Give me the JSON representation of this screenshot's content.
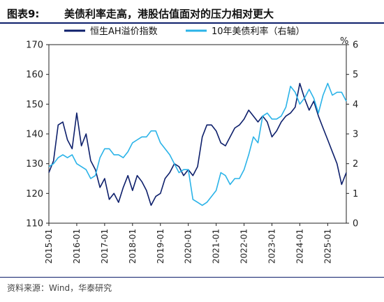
{
  "figure": {
    "label": "图表9:",
    "title": "美债利率走高，港股估值面对的压力相对更大",
    "source": "资料来源：Wind，华泰研究"
  },
  "colors": {
    "header_rule": "#0d1f6b",
    "series_primary": "#0d1f6b",
    "series_secondary": "#2ab3e8",
    "axis": "#222222"
  },
  "chart_data": {
    "type": "line",
    "title": "",
    "legend_placement": "top",
    "grid": false,
    "x_ticks": [
      "2015-01",
      "2016-01",
      "2017-01",
      "2018-01",
      "2019-01",
      "2020-01",
      "2021-01",
      "2022-01",
      "2023-01",
      "2024-01",
      "2025-01"
    ],
    "x_range": [
      "2015-01-01",
      "2025-09-01"
    ],
    "y_left": {
      "range": [
        110,
        170
      ],
      "ticks": [
        110,
        120,
        130,
        140,
        150,
        160,
        170
      ]
    },
    "y_right": {
      "range": [
        0,
        6
      ],
      "ticks": [
        0,
        1,
        2,
        3,
        4,
        5,
        6
      ],
      "unit": "%"
    },
    "series": [
      {
        "name": "恒生AH溢价指数",
        "axis": "left",
        "color": "#0d1f6b",
        "points": [
          [
            "2015-01",
            127
          ],
          [
            "2015-03",
            131
          ],
          [
            "2015-05",
            143
          ],
          [
            "2015-07",
            144
          ],
          [
            "2015-09",
            138
          ],
          [
            "2015-11",
            135
          ],
          [
            "2016-01",
            147
          ],
          [
            "2016-03",
            136
          ],
          [
            "2016-05",
            140
          ],
          [
            "2016-07",
            131
          ],
          [
            "2016-09",
            128
          ],
          [
            "2016-11",
            122
          ],
          [
            "2017-01",
            125
          ],
          [
            "2017-03",
            118
          ],
          [
            "2017-05",
            120
          ],
          [
            "2017-07",
            117
          ],
          [
            "2017-09",
            122
          ],
          [
            "2017-11",
            126
          ],
          [
            "2018-01",
            121
          ],
          [
            "2018-03",
            126
          ],
          [
            "2018-05",
            124
          ],
          [
            "2018-07",
            121
          ],
          [
            "2018-09",
            116
          ],
          [
            "2018-11",
            119
          ],
          [
            "2019-01",
            120
          ],
          [
            "2019-03",
            125
          ],
          [
            "2019-05",
            127
          ],
          [
            "2019-07",
            130
          ],
          [
            "2019-09",
            129
          ],
          [
            "2019-11",
            126
          ],
          [
            "2020-01",
            128
          ],
          [
            "2020-03",
            126
          ],
          [
            "2020-05",
            129
          ],
          [
            "2020-07",
            139
          ],
          [
            "2020-09",
            143
          ],
          [
            "2020-11",
            143
          ],
          [
            "2021-01",
            141
          ],
          [
            "2021-03",
            137
          ],
          [
            "2021-05",
            136
          ],
          [
            "2021-07",
            139
          ],
          [
            "2021-09",
            142
          ],
          [
            "2021-11",
            143
          ],
          [
            "2022-01",
            145
          ],
          [
            "2022-03",
            148
          ],
          [
            "2022-05",
            146
          ],
          [
            "2022-07",
            144
          ],
          [
            "2022-09",
            146
          ],
          [
            "2022-11",
            144
          ],
          [
            "2023-01",
            139
          ],
          [
            "2023-03",
            141
          ],
          [
            "2023-05",
            144
          ],
          [
            "2023-07",
            146
          ],
          [
            "2023-09",
            147
          ],
          [
            "2023-11",
            149
          ],
          [
            "2024-01",
            157
          ],
          [
            "2024-03",
            152
          ],
          [
            "2024-05",
            148
          ],
          [
            "2024-07",
            151
          ],
          [
            "2024-09",
            146
          ],
          [
            "2024-11",
            142
          ],
          [
            "2025-01",
            138
          ],
          [
            "2025-03",
            134
          ],
          [
            "2025-05",
            130
          ],
          [
            "2025-07",
            123
          ],
          [
            "2025-09",
            127
          ]
        ]
      },
      {
        "name": "10年美债利率（右轴）",
        "axis": "right",
        "color": "#2ab3e8",
        "points": [
          [
            "2015-01",
            1.9
          ],
          [
            "2015-03",
            2.0
          ],
          [
            "2015-05",
            2.2
          ],
          [
            "2015-07",
            2.3
          ],
          [
            "2015-09",
            2.2
          ],
          [
            "2015-11",
            2.3
          ],
          [
            "2016-01",
            2.0
          ],
          [
            "2016-03",
            1.9
          ],
          [
            "2016-05",
            1.8
          ],
          [
            "2016-07",
            1.5
          ],
          [
            "2016-09",
            1.6
          ],
          [
            "2016-11",
            2.2
          ],
          [
            "2017-01",
            2.5
          ],
          [
            "2017-03",
            2.5
          ],
          [
            "2017-05",
            2.3
          ],
          [
            "2017-07",
            2.3
          ],
          [
            "2017-09",
            2.2
          ],
          [
            "2017-11",
            2.4
          ],
          [
            "2018-01",
            2.7
          ],
          [
            "2018-03",
            2.8
          ],
          [
            "2018-05",
            2.9
          ],
          [
            "2018-07",
            2.9
          ],
          [
            "2018-09",
            3.1
          ],
          [
            "2018-11",
            3.1
          ],
          [
            "2019-01",
            2.7
          ],
          [
            "2019-03",
            2.5
          ],
          [
            "2019-05",
            2.3
          ],
          [
            "2019-07",
            2.0
          ],
          [
            "2019-09",
            1.7
          ],
          [
            "2019-11",
            1.8
          ],
          [
            "2020-01",
            1.8
          ],
          [
            "2020-03",
            0.8
          ],
          [
            "2020-05",
            0.7
          ],
          [
            "2020-07",
            0.6
          ],
          [
            "2020-09",
            0.7
          ],
          [
            "2020-11",
            0.9
          ],
          [
            "2021-01",
            1.1
          ],
          [
            "2021-03",
            1.7
          ],
          [
            "2021-05",
            1.6
          ],
          [
            "2021-07",
            1.3
          ],
          [
            "2021-09",
            1.5
          ],
          [
            "2021-11",
            1.5
          ],
          [
            "2022-01",
            1.8
          ],
          [
            "2022-03",
            2.3
          ],
          [
            "2022-05",
            2.9
          ],
          [
            "2022-07",
            2.7
          ],
          [
            "2022-09",
            3.6
          ],
          [
            "2022-11",
            3.7
          ],
          [
            "2023-01",
            3.5
          ],
          [
            "2023-03",
            3.5
          ],
          [
            "2023-05",
            3.6
          ],
          [
            "2023-07",
            3.9
          ],
          [
            "2023-09",
            4.6
          ],
          [
            "2023-11",
            4.4
          ],
          [
            "2024-01",
            4.0
          ],
          [
            "2024-03",
            4.2
          ],
          [
            "2024-05",
            4.5
          ],
          [
            "2024-07",
            4.2
          ],
          [
            "2024-09",
            3.7
          ],
          [
            "2024-11",
            4.3
          ],
          [
            "2025-01",
            4.7
          ],
          [
            "2025-03",
            4.3
          ],
          [
            "2025-05",
            4.4
          ],
          [
            "2025-07",
            4.4
          ],
          [
            "2025-09",
            4.1
          ]
        ]
      }
    ]
  }
}
